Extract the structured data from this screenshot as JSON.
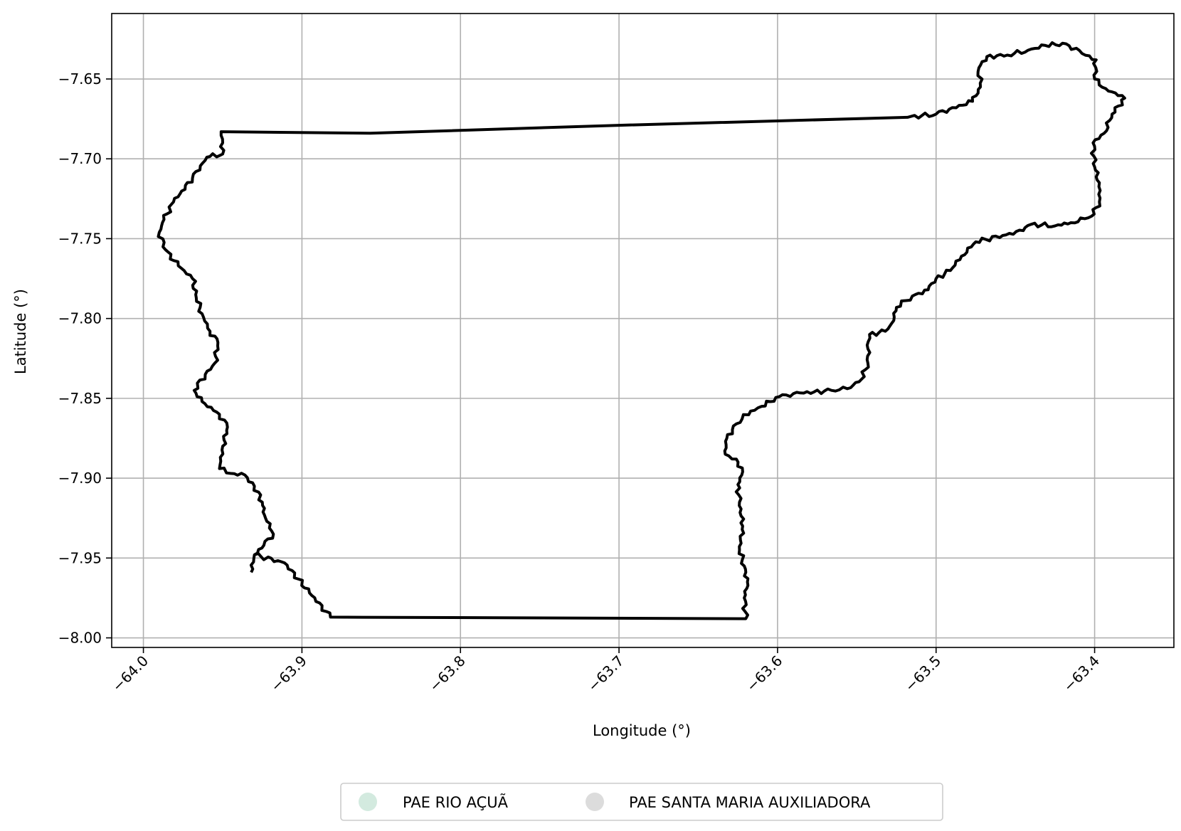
{
  "chart_data": {
    "type": "map",
    "xlabel": "Longitude (°)",
    "ylabel": "Latitude (°)",
    "xlim": [
      -64.02,
      -63.35
    ],
    "ylim": [
      -8.006,
      -7.609
    ],
    "grid": true,
    "x_ticks": [
      -64.0,
      -63.9,
      -63.8,
      -63.7,
      -63.6,
      -63.5,
      -63.4
    ],
    "x_tick_labels": [
      "−64.0",
      "−63.9",
      "−63.8",
      "−63.7",
      "−63.6",
      "−63.5",
      "−63.4"
    ],
    "y_ticks": [
      -7.65,
      -7.7,
      -7.75,
      -7.8,
      -7.85,
      -7.9,
      -7.95,
      -8.0
    ],
    "y_tick_labels": [
      "−7.65",
      "−7.70",
      "−7.75",
      "−7.80",
      "−7.85",
      "−7.90",
      "−7.95",
      "−8.00"
    ],
    "legend_position": "bottom-center",
    "legend": [
      {
        "label": "PAE RIO AÇUÃ",
        "color": "#d3eadf"
      },
      {
        "label": "PAE SANTA MARIA AUXILIADORA",
        "color": "#dcdcdc"
      }
    ],
    "boundary": {
      "stroke_color": "#000000",
      "points": [
        [
          -63.932,
          -7.959
        ],
        [
          -63.93,
          -7.948
        ],
        [
          -63.911,
          -7.953
        ],
        [
          -63.882,
          -7.987
        ],
        [
          -63.62,
          -7.988
        ],
        [
          -63.621,
          -7.975
        ],
        [
          -63.619,
          -7.965
        ],
        [
          -63.621,
          -7.955
        ],
        [
          -63.624,
          -7.945
        ],
        [
          -63.622,
          -7.93
        ],
        [
          -63.624,
          -7.915
        ],
        [
          -63.625,
          -7.904
        ],
        [
          -63.622,
          -7.896
        ],
        [
          -63.626,
          -7.888
        ],
        [
          -63.633,
          -7.885
        ],
        [
          -63.632,
          -7.875
        ],
        [
          -63.626,
          -7.866
        ],
        [
          -63.617,
          -7.858
        ],
        [
          -63.61,
          -7.855
        ],
        [
          -63.599,
          -7.849
        ],
        [
          -63.59,
          -7.847
        ],
        [
          -63.577,
          -7.846
        ],
        [
          -63.566,
          -7.845
        ],
        [
          -63.556,
          -7.844
        ],
        [
          -63.547,
          -7.838
        ],
        [
          -63.543,
          -7.828
        ],
        [
          -63.543,
          -7.819
        ],
        [
          -63.542,
          -7.81
        ],
        [
          -63.532,
          -7.808
        ],
        [
          -63.528,
          -7.803
        ],
        [
          -63.525,
          -7.793
        ],
        [
          -63.515,
          -7.786
        ],
        [
          -63.505,
          -7.782
        ],
        [
          -63.5,
          -7.775
        ],
        [
          -63.491,
          -7.77
        ],
        [
          -63.484,
          -7.761
        ],
        [
          -63.475,
          -7.752
        ],
        [
          -63.458,
          -7.748
        ],
        [
          -63.445,
          -7.745
        ],
        [
          -63.44,
          -7.741
        ],
        [
          -63.425,
          -7.742
        ],
        [
          -63.415,
          -7.74
        ],
        [
          -63.402,
          -7.736
        ],
        [
          -63.397,
          -7.727
        ],
        [
          -63.397,
          -7.715
        ],
        [
          -63.4,
          -7.705
        ],
        [
          -63.401,
          -7.69
        ],
        [
          -63.394,
          -7.684
        ],
        [
          -63.389,
          -7.672
        ],
        [
          -63.381,
          -7.662
        ],
        [
          -63.393,
          -7.656
        ],
        [
          -63.4,
          -7.65
        ],
        [
          -63.399,
          -7.638
        ],
        [
          -63.408,
          -7.634
        ],
        [
          -63.418,
          -7.628
        ],
        [
          -63.431,
          -7.629
        ],
        [
          -63.442,
          -7.632
        ],
        [
          -63.455,
          -7.635
        ],
        [
          -63.468,
          -7.636
        ],
        [
          -63.473,
          -7.643
        ],
        [
          -63.472,
          -7.655
        ],
        [
          -63.477,
          -7.664
        ],
        [
          -63.5,
          -7.672
        ],
        [
          -63.518,
          -7.674
        ],
        [
          -63.7,
          -7.679
        ],
        [
          -63.857,
          -7.684
        ],
        [
          -63.951,
          -7.683
        ],
        [
          -63.95,
          -7.69
        ],
        [
          -63.95,
          -7.697
        ],
        [
          -63.96,
          -7.699
        ],
        [
          -63.969,
          -7.712
        ],
        [
          -63.981,
          -7.727
        ],
        [
          -63.987,
          -7.738
        ],
        [
          -63.99,
          -7.746
        ],
        [
          -63.986,
          -7.757
        ],
        [
          -63.978,
          -7.767
        ],
        [
          -63.969,
          -7.775
        ],
        [
          -63.967,
          -7.785
        ],
        [
          -63.963,
          -7.797
        ],
        [
          -63.958,
          -7.808
        ],
        [
          -63.953,
          -7.815
        ],
        [
          -63.955,
          -7.828
        ],
        [
          -63.961,
          -7.835
        ],
        [
          -63.968,
          -7.845
        ],
        [
          -63.963,
          -7.852
        ],
        [
          -63.952,
          -7.86
        ],
        [
          -63.947,
          -7.868
        ],
        [
          -63.95,
          -7.88
        ],
        [
          -63.952,
          -7.894
        ],
        [
          -63.945,
          -7.897
        ],
        [
          -63.936,
          -7.898
        ],
        [
          -63.93,
          -7.905
        ],
        [
          -63.925,
          -7.915
        ],
        [
          -63.923,
          -7.925
        ],
        [
          -63.918,
          -7.935
        ],
        [
          -63.924,
          -7.942
        ],
        [
          -63.93,
          -7.948
        ]
      ]
    }
  }
}
